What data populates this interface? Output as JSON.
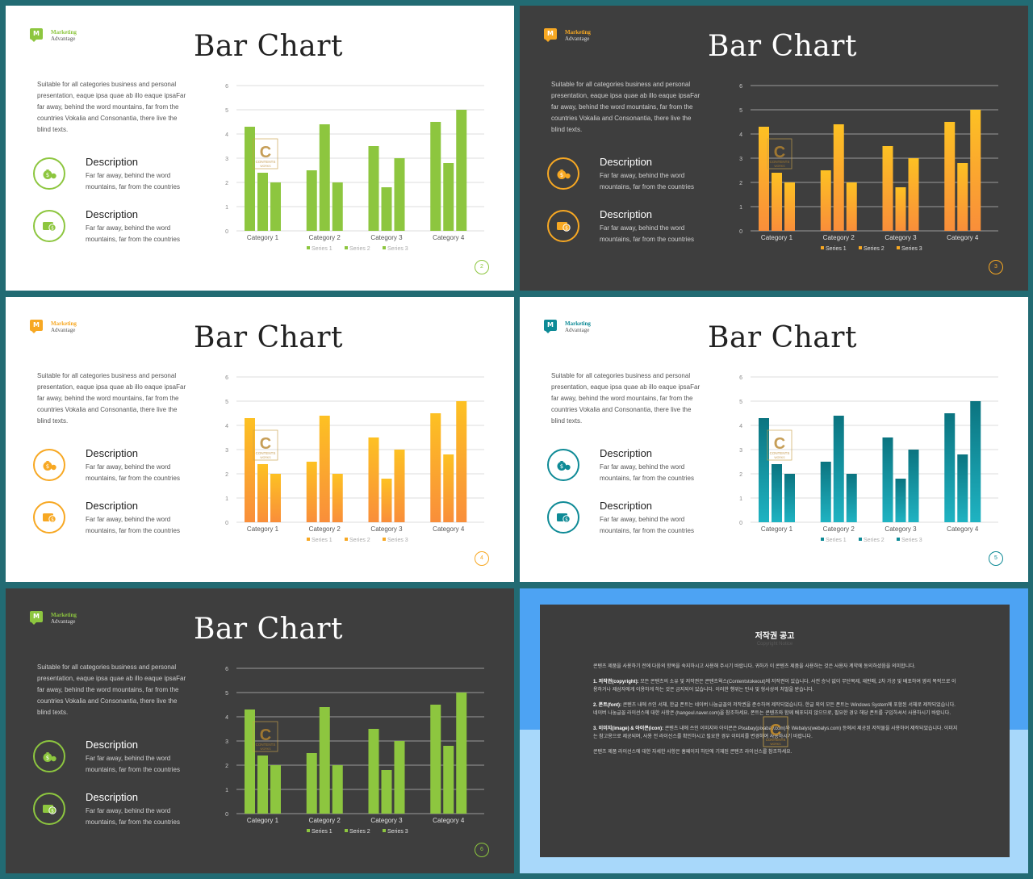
{
  "categories": [
    "Category 1",
    "Category 2",
    "Category 3",
    "Category 4"
  ],
  "legend": [
    "Series 1",
    "Series 2",
    "Series 3"
  ],
  "series": [
    {
      "name": "Series 1",
      "values": [
        4.3,
        2.5,
        3.5,
        4.5
      ]
    },
    {
      "name": "Series 2",
      "values": [
        2.4,
        4.4,
        1.8,
        2.8
      ]
    },
    {
      "name": "Series 3",
      "values": [
        2.0,
        2.0,
        3.0,
        5.0
      ]
    }
  ],
  "ylim": [
    0,
    6
  ],
  "yticks": [
    "0",
    "1",
    "2",
    "3",
    "4",
    "5",
    "6"
  ],
  "slides": [
    {
      "theme": "light",
      "accent": "#8dc63f",
      "grad_top": "#8dc63f",
      "grad_bottom": "#8dc63f",
      "brand": {
        "mark": "M",
        "line1": "Marketing",
        "line2": "Advantage"
      },
      "title": "Bar Chart",
      "intro": "Suitable for all categories business and personal presentation, eaque ipsa quae ab illo eaque ipsaFar far away, behind the word mountains, far from the countries Vokalia and Consonantia, there live the blind texts.",
      "items": [
        {
          "heading": "Description",
          "text": "Far far away, behind the word mountains, far from the countries",
          "icon": "money-bag-icon"
        },
        {
          "heading": "Description",
          "text": "Far far away, behind the word mountains, far from the countries",
          "icon": "wallet-icon"
        }
      ],
      "page": "2"
    },
    {
      "theme": "dark",
      "accent": "#f7a823",
      "grad_top": "#fdc123",
      "grad_bottom": "#f98e3a",
      "brand": {
        "mark": "M",
        "line1": "Marketing",
        "line2": "Advantage"
      },
      "title": "Bar Chart",
      "intro": "Suitable for all categories business and personal presentation, eaque ipsa quae ab illo eaque ipsaFar far away, behind the word mountains, far from the countries Vokalia and Consonantia, there live the blind texts.",
      "items": [
        {
          "heading": "Description",
          "text": "Far far away, behind the word mountains, far from the countries",
          "icon": "money-bag-icon"
        },
        {
          "heading": "Description",
          "text": "Far far away, behind the word mountains, far from the countries",
          "icon": "wallet-icon"
        }
      ],
      "page": "3"
    },
    {
      "theme": "light",
      "accent": "#f7a823",
      "grad_top": "#fdc123",
      "grad_bottom": "#f98e3a",
      "brand": {
        "mark": "M",
        "line1": "Marketing",
        "line2": "Advantage"
      },
      "title": "Bar Chart",
      "intro": "Suitable for all categories business and personal presentation, eaque ipsa quae ab illo eaque ipsaFar far away, behind the word mountains, far from the countries Vokalia and Consonantia, there live the blind texts.",
      "items": [
        {
          "heading": "Description",
          "text": "Far far away, behind the word mountains, far from the countries",
          "icon": "money-bag-icon"
        },
        {
          "heading": "Description",
          "text": "Far far away, behind the word mountains, far from the countries",
          "icon": "wallet-icon"
        }
      ],
      "page": "4"
    },
    {
      "theme": "light",
      "accent": "#0e8a96",
      "grad_top": "#0b7480",
      "grad_bottom": "#1fb3c2",
      "brand": {
        "mark": "M",
        "line1": "Marketing",
        "line2": "Advantage"
      },
      "title": "Bar Chart",
      "intro": "Suitable for all categories business and personal presentation, eaque ipsa quae ab illo eaque ipsaFar far away, behind the word mountains, far from the countries Vokalia and Consonantia, there live the blind texts.",
      "items": [
        {
          "heading": "Description",
          "text": "Far far away, behind the word mountains, far from the countries",
          "icon": "money-bag-icon"
        },
        {
          "heading": "Description",
          "text": "Far far away, behind the word mountains, far from the countries",
          "icon": "wallet-icon"
        }
      ],
      "page": "5"
    },
    {
      "theme": "dark",
      "accent": "#8dc63f",
      "grad_top": "#8dc63f",
      "grad_bottom": "#8dc63f",
      "brand": {
        "mark": "M",
        "line1": "Marketing",
        "line2": "Advantage"
      },
      "title": "Bar Chart",
      "intro": "Suitable for all categories business and personal presentation, eaque ipsa quae ab illo eaque ipsaFar far away, behind the word mountains, far from the countries Vokalia and Consonantia, there live the blind texts.",
      "items": [
        {
          "heading": "Description",
          "text": "Far far away, behind the word mountains, far from the countries",
          "icon": "money-bag-icon"
        },
        {
          "heading": "Description",
          "text": "Far far away, behind the word mountains, far from the countries",
          "icon": "wallet-icon"
        }
      ],
      "page": "6"
    }
  ],
  "watermark": {
    "letter": "C",
    "line1": "CONTENTS",
    "line2": "WORKS"
  },
  "notice": {
    "title": "저작권 공고",
    "subtitle": "Copyright Notice",
    "paragraphs": [
      {
        "lead": "",
        "text": "콘텐츠 제품을 사용하기 전에 다음의 항목을 숙지하시고 사용해 주시기 바랍니다. 귀하가 이 콘텐츠 제품을 사용하는 것은 사용자 계약에 동의하셨음을 의미합니다."
      },
      {
        "lead": "1. 저작권(copyright):",
        "text": " 모든 콘텐츠의 소유 및 저작권은 콘텐츠웍스(Contentstokeout)에 저작권이 있습니다. 사전 승낙 없이 무단복제, 재판매, 2차 가공 및 배포하여 영리 목적으로 이용하거나 제삼자에게 이용하게 하는 것은 금지되어 있습니다. 이러한 행위는 민사 및 형사상의 처벌을 받습니다."
      },
      {
        "lead": "2. 폰트(font):",
        "text": " 콘텐츠 내에 쓰인 서체, 한글 폰트는 네이버 나눔글꼴의 저작권을 준수하여 제작되었습니다. 한글 외의 모든 폰트는 Windows System에 포함된 서체로 제작되었습니다. 네이버 나눔글꼴 라이선스에 대한 사항은 (hangeul.naver.com)을 참조하세요. 폰트는 콘텐츠와 함께 배포되지 않으므로, 필요한 경우 해당 폰트를 구입하셔서 사용하시기 바랍니다."
      },
      {
        "lead": "3. 이미지(image) & 아이콘(icon):",
        "text": " 콘텐츠 내에 쓰인 이미지와 아이콘은 Pixabay(pixabay.com)와 Webalys(webalys.com) 등에서 제공된 저작물을 사용하여 제작되었습니다. 이미지는 참고용으로 제공되며, 사용 전 라이선스를 확인하시고 필요한 경우 이미지를 변경하여 사용하시기 바랍니다."
      },
      {
        "lead": "",
        "text": "콘텐츠 제품 라이선스에 대한 자세한 사항은 홈페이지 하단에 기재된 콘텐츠 라이선스를 참조하세요."
      }
    ]
  }
}
